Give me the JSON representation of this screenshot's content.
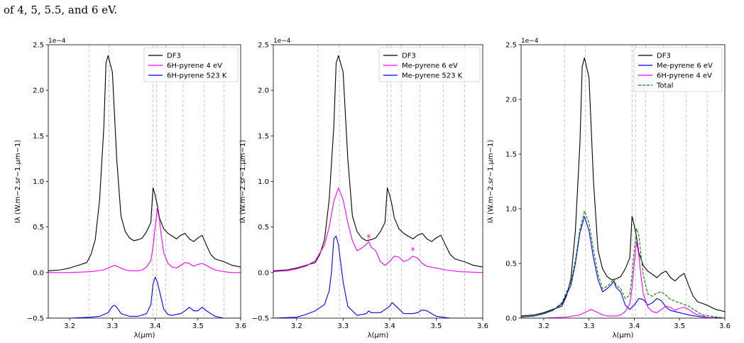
{
  "caption": "of 4, 5, 5.5, and 6 eV.",
  "colors": {
    "DF3": "#000000",
    "magenta": "#ff00ff",
    "blue": "#0000ff",
    "total": "#008000",
    "grid": "#bbbbbb"
  },
  "chart_data": [
    {
      "type": "line",
      "xlabel": "λ(μm)",
      "ylabel": "Iλ (W.m−2.sr−1.μm−1)",
      "y_multiplier": "1e−4",
      "xlim": [
        3.15,
        3.6
      ],
      "ylim": [
        -0.5,
        2.5
      ],
      "xticks": [
        "3.2",
        "3.3",
        "3.4",
        "3.5",
        "3.6"
      ],
      "yticks": [
        "−0.5",
        "0.0",
        "0.5",
        "1.0",
        "1.5",
        "2.0",
        "2.5"
      ],
      "vlines": [
        3.246,
        3.292,
        3.395,
        3.403,
        3.425,
        3.465,
        3.515,
        3.561
      ],
      "legend": [
        "DF3",
        "6H-pyrene 4 eV",
        "6H-pyrene 523 K"
      ],
      "series": [
        {
          "name": "DF3",
          "style": "solid",
          "color": "#000000",
          "x": [
            3.15,
            3.18,
            3.2,
            3.22,
            3.24,
            3.25,
            3.26,
            3.27,
            3.28,
            3.285,
            3.29,
            3.3,
            3.31,
            3.32,
            3.33,
            3.34,
            3.35,
            3.36,
            3.37,
            3.38,
            3.39,
            3.395,
            3.4,
            3.405,
            3.41,
            3.42,
            3.43,
            3.44,
            3.45,
            3.46,
            3.47,
            3.48,
            3.49,
            3.5,
            3.51,
            3.52,
            3.53,
            3.54,
            3.56,
            3.58,
            3.6
          ],
          "y": [
            0.02,
            0.03,
            0.05,
            0.08,
            0.11,
            0.2,
            0.36,
            0.8,
            1.6,
            2.3,
            2.38,
            2.2,
            1.25,
            0.62,
            0.45,
            0.38,
            0.35,
            0.36,
            0.38,
            0.45,
            0.55,
            0.93,
            0.85,
            0.74,
            0.6,
            0.48,
            0.43,
            0.4,
            0.37,
            0.41,
            0.43,
            0.37,
            0.34,
            0.38,
            0.41,
            0.3,
            0.2,
            0.15,
            0.12,
            0.08,
            0.06
          ]
        },
        {
          "name": "6H-pyrene 4 eV",
          "style": "solid",
          "color": "#ff00ff",
          "x": [
            3.15,
            3.2,
            3.25,
            3.28,
            3.29,
            3.3,
            3.305,
            3.31,
            3.32,
            3.33,
            3.34,
            3.35,
            3.36,
            3.37,
            3.38,
            3.39,
            3.395,
            3.4,
            3.405,
            3.41,
            3.415,
            3.42,
            3.43,
            3.44,
            3.45,
            3.46,
            3.47,
            3.48,
            3.49,
            3.5,
            3.51,
            3.52,
            3.53,
            3.54,
            3.56,
            3.58,
            3.6
          ],
          "y": [
            0.0,
            0.0,
            0.01,
            0.03,
            0.05,
            0.07,
            0.08,
            0.07,
            0.05,
            0.03,
            0.02,
            0.02,
            0.02,
            0.03,
            0.06,
            0.13,
            0.28,
            0.5,
            0.7,
            0.58,
            0.38,
            0.22,
            0.1,
            0.06,
            0.05,
            0.08,
            0.11,
            0.1,
            0.07,
            0.09,
            0.1,
            0.08,
            0.05,
            0.03,
            0.01,
            0.0,
            0.0
          ]
        },
        {
          "name": "6H-pyrene 523 K",
          "style": "solid",
          "color": "#0000ff",
          "x": [
            3.15,
            3.2,
            3.25,
            3.27,
            3.29,
            3.3,
            3.305,
            3.31,
            3.32,
            3.34,
            3.36,
            3.38,
            3.39,
            3.395,
            3.4,
            3.405,
            3.41,
            3.415,
            3.42,
            3.43,
            3.44,
            3.46,
            3.47,
            3.48,
            3.49,
            3.5,
            3.51,
            3.52,
            3.54,
            3.56,
            3.6
          ],
          "y": [
            -0.5,
            -0.5,
            -0.49,
            -0.48,
            -0.44,
            -0.37,
            -0.36,
            -0.38,
            -0.45,
            -0.48,
            -0.48,
            -0.45,
            -0.35,
            -0.13,
            -0.05,
            -0.1,
            -0.2,
            -0.3,
            -0.4,
            -0.46,
            -0.47,
            -0.45,
            -0.42,
            -0.38,
            -0.42,
            -0.42,
            -0.38,
            -0.42,
            -0.48,
            -0.5,
            -0.5
          ]
        }
      ]
    },
    {
      "type": "line",
      "xlabel": "λ(μm)",
      "ylabel": "Iλ (W.m−2.sr−1.μm−1)",
      "y_multiplier": "1e−4",
      "xlim": [
        3.15,
        3.6
      ],
      "ylim": [
        -0.5,
        2.5
      ],
      "xticks": [
        "3.2",
        "3.3",
        "3.4",
        "3.5",
        "3.6"
      ],
      "yticks": [
        "−0.5",
        "0.0",
        "0.5",
        "1.0",
        "1.5",
        "2.0",
        "2.5"
      ],
      "vlines": [
        3.246,
        3.292,
        3.395,
        3.403,
        3.425,
        3.465,
        3.515,
        3.561
      ],
      "legend": [
        "DF3",
        "Me-pyrene 6 eV",
        "Me-pyrene 523 K"
      ],
      "markers": [
        {
          "x": 3.355,
          "y": 0.38,
          "symbol": "*"
        },
        {
          "x": 3.45,
          "y": 0.24,
          "symbol": "*"
        }
      ],
      "series": [
        {
          "name": "DF3",
          "style": "solid",
          "color": "#000000",
          "x": [
            3.15,
            3.18,
            3.2,
            3.22,
            3.24,
            3.25,
            3.26,
            3.27,
            3.28,
            3.285,
            3.29,
            3.3,
            3.31,
            3.32,
            3.33,
            3.34,
            3.35,
            3.36,
            3.37,
            3.38,
            3.39,
            3.395,
            3.4,
            3.405,
            3.41,
            3.42,
            3.43,
            3.44,
            3.45,
            3.46,
            3.47,
            3.48,
            3.49,
            3.5,
            3.51,
            3.52,
            3.53,
            3.54,
            3.56,
            3.58,
            3.6
          ],
          "y": [
            0.02,
            0.03,
            0.05,
            0.08,
            0.11,
            0.2,
            0.36,
            0.8,
            1.6,
            2.3,
            2.38,
            2.2,
            1.25,
            0.62,
            0.45,
            0.38,
            0.35,
            0.36,
            0.38,
            0.45,
            0.55,
            0.93,
            0.85,
            0.74,
            0.6,
            0.48,
            0.43,
            0.4,
            0.37,
            0.41,
            0.43,
            0.37,
            0.34,
            0.38,
            0.41,
            0.3,
            0.2,
            0.15,
            0.12,
            0.08,
            0.06
          ]
        },
        {
          "name": "Me-pyrene 6 eV",
          "style": "solid",
          "color": "#ff00ff",
          "x": [
            3.15,
            3.18,
            3.2,
            3.22,
            3.24,
            3.26,
            3.27,
            3.28,
            3.29,
            3.3,
            3.31,
            3.32,
            3.33,
            3.34,
            3.35,
            3.355,
            3.36,
            3.37,
            3.38,
            3.39,
            3.4,
            3.41,
            3.42,
            3.43,
            3.44,
            3.45,
            3.46,
            3.47,
            3.48,
            3.5,
            3.52,
            3.55,
            3.6
          ],
          "y": [
            0.01,
            0.02,
            0.04,
            0.07,
            0.13,
            0.3,
            0.5,
            0.78,
            0.93,
            0.8,
            0.55,
            0.35,
            0.24,
            0.27,
            0.31,
            0.34,
            0.28,
            0.24,
            0.12,
            0.08,
            0.12,
            0.18,
            0.17,
            0.12,
            0.14,
            0.18,
            0.16,
            0.1,
            0.07,
            0.05,
            0.03,
            0.01,
            0.0
          ]
        },
        {
          "name": "Me-pyrene 523 K",
          "style": "solid",
          "color": "#0000ff",
          "x": [
            3.15,
            3.2,
            3.22,
            3.24,
            3.26,
            3.27,
            3.275,
            3.28,
            3.285,
            3.29,
            3.3,
            3.31,
            3.33,
            3.35,
            3.355,
            3.36,
            3.38,
            3.4,
            3.405,
            3.41,
            3.43,
            3.45,
            3.46,
            3.47,
            3.48,
            3.5,
            3.53,
            3.56,
            3.6
          ],
          "y": [
            -0.5,
            -0.49,
            -0.46,
            -0.42,
            -0.35,
            -0.2,
            0.0,
            0.37,
            0.4,
            0.3,
            -0.1,
            -0.37,
            -0.47,
            -0.45,
            -0.42,
            -0.44,
            -0.44,
            -0.37,
            -0.33,
            -0.35,
            -0.45,
            -0.45,
            -0.44,
            -0.41,
            -0.42,
            -0.48,
            -0.5,
            -0.5,
            -0.5
          ]
        }
      ]
    },
    {
      "type": "line",
      "xlabel": "λ(μm)",
      "ylabel": "Iλ (W.m−2.sr−1.μm−1)",
      "y_multiplier": "1e−4",
      "xlim": [
        3.15,
        3.6
      ],
      "ylim": [
        0,
        2.5
      ],
      "xticks": [
        "3.2",
        "3.3",
        "3.4",
        "3.5",
        "3.6"
      ],
      "yticks": [
        "0.0",
        "0.5",
        "1.0",
        "1.5",
        "2.0",
        "2.5"
      ],
      "vlines": [
        3.246,
        3.292,
        3.395,
        3.403,
        3.425,
        3.465,
        3.515,
        3.561
      ],
      "legend": [
        "DF3",
        "Me-pyrene 6 eV",
        "6H-pyrene 4 eV",
        "Total"
      ],
      "series": [
        {
          "name": "DF3",
          "style": "solid",
          "color": "#000000",
          "x": [
            3.15,
            3.18,
            3.2,
            3.22,
            3.24,
            3.25,
            3.26,
            3.27,
            3.28,
            3.285,
            3.29,
            3.3,
            3.31,
            3.32,
            3.33,
            3.34,
            3.35,
            3.36,
            3.37,
            3.38,
            3.39,
            3.395,
            3.4,
            3.405,
            3.41,
            3.42,
            3.43,
            3.44,
            3.45,
            3.46,
            3.47,
            3.48,
            3.49,
            3.5,
            3.51,
            3.52,
            3.53,
            3.54,
            3.56,
            3.58,
            3.6
          ],
          "y": [
            0.02,
            0.03,
            0.05,
            0.08,
            0.11,
            0.2,
            0.36,
            0.8,
            1.6,
            2.3,
            2.38,
            2.2,
            1.25,
            0.62,
            0.45,
            0.38,
            0.35,
            0.36,
            0.38,
            0.45,
            0.55,
            0.93,
            0.85,
            0.74,
            0.6,
            0.48,
            0.43,
            0.4,
            0.37,
            0.41,
            0.43,
            0.37,
            0.34,
            0.38,
            0.41,
            0.3,
            0.2,
            0.15,
            0.12,
            0.08,
            0.06
          ]
        },
        {
          "name": "Me-pyrene 6 eV",
          "style": "solid",
          "color": "#0000ff",
          "x": [
            3.15,
            3.18,
            3.2,
            3.22,
            3.24,
            3.26,
            3.27,
            3.28,
            3.29,
            3.3,
            3.31,
            3.32,
            3.33,
            3.34,
            3.35,
            3.355,
            3.36,
            3.37,
            3.38,
            3.39,
            3.4,
            3.41,
            3.42,
            3.43,
            3.44,
            3.45,
            3.46,
            3.47,
            3.48,
            3.5,
            3.52,
            3.55,
            3.6
          ],
          "y": [
            0.01,
            0.02,
            0.04,
            0.07,
            0.13,
            0.3,
            0.5,
            0.78,
            0.93,
            0.8,
            0.55,
            0.35,
            0.24,
            0.27,
            0.31,
            0.34,
            0.28,
            0.24,
            0.12,
            0.08,
            0.12,
            0.18,
            0.17,
            0.12,
            0.14,
            0.18,
            0.16,
            0.1,
            0.07,
            0.05,
            0.03,
            0.01,
            0.0
          ]
        },
        {
          "name": "6H-pyrene 4 eV",
          "style": "solid",
          "color": "#ff00ff",
          "x": [
            3.15,
            3.2,
            3.25,
            3.28,
            3.29,
            3.3,
            3.305,
            3.31,
            3.32,
            3.33,
            3.34,
            3.35,
            3.36,
            3.37,
            3.38,
            3.39,
            3.395,
            3.4,
            3.405,
            3.41,
            3.415,
            3.42,
            3.43,
            3.44,
            3.45,
            3.46,
            3.47,
            3.48,
            3.49,
            3.5,
            3.51,
            3.52,
            3.53,
            3.54,
            3.56,
            3.58,
            3.6
          ],
          "y": [
            0.0,
            0.0,
            0.01,
            0.03,
            0.05,
            0.07,
            0.08,
            0.07,
            0.05,
            0.03,
            0.02,
            0.02,
            0.02,
            0.03,
            0.06,
            0.13,
            0.28,
            0.5,
            0.7,
            0.58,
            0.38,
            0.22,
            0.1,
            0.06,
            0.05,
            0.08,
            0.11,
            0.1,
            0.07,
            0.09,
            0.1,
            0.08,
            0.05,
            0.03,
            0.01,
            0.0,
            0.0
          ]
        },
        {
          "name": "Total",
          "style": "dashed",
          "color": "#008000",
          "x": [
            3.15,
            3.18,
            3.2,
            3.22,
            3.24,
            3.26,
            3.27,
            3.28,
            3.29,
            3.3,
            3.31,
            3.32,
            3.33,
            3.34,
            3.35,
            3.355,
            3.36,
            3.37,
            3.38,
            3.39,
            3.395,
            3.4,
            3.405,
            3.41,
            3.42,
            3.43,
            3.44,
            3.45,
            3.46,
            3.47,
            3.48,
            3.5,
            3.52,
            3.55,
            3.6
          ],
          "y": [
            0.01,
            0.02,
            0.04,
            0.07,
            0.14,
            0.33,
            0.53,
            0.81,
            0.98,
            0.87,
            0.62,
            0.4,
            0.27,
            0.29,
            0.33,
            0.36,
            0.3,
            0.27,
            0.18,
            0.21,
            0.4,
            0.62,
            0.82,
            0.76,
            0.39,
            0.22,
            0.2,
            0.23,
            0.24,
            0.21,
            0.17,
            0.14,
            0.11,
            0.03,
            0.0
          ]
        }
      ]
    }
  ]
}
